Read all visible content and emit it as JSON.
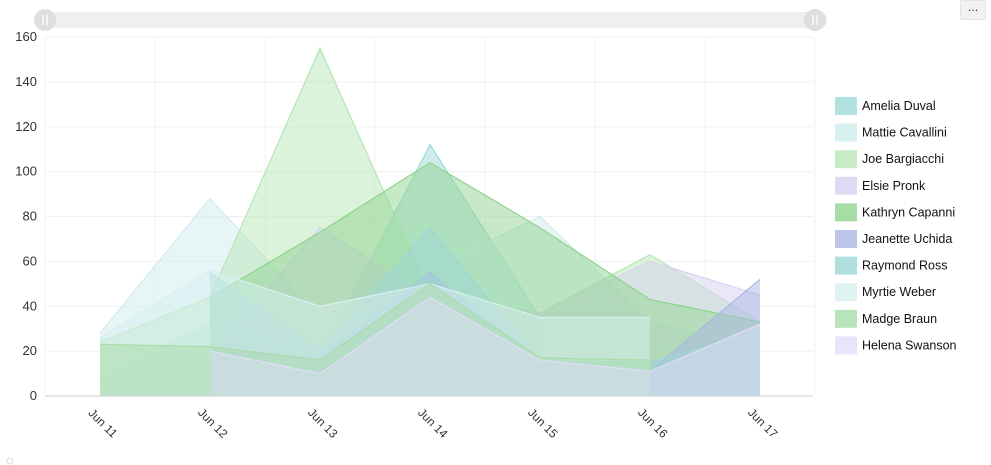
{
  "toolbar": {
    "menu_label": "..."
  },
  "chart_data": {
    "type": "area",
    "title": "",
    "xlabel": "",
    "ylabel": "",
    "categories": [
      "Jun 11",
      "Jun 12",
      "Jun 13",
      "Jun 14",
      "Jun 15",
      "Jun 16",
      "Jun 17"
    ],
    "ylim": [
      0,
      160
    ],
    "yticks": [
      0,
      20,
      40,
      60,
      80,
      100,
      120,
      140,
      160
    ],
    "grid": true,
    "legend_position": "right",
    "series": [
      {
        "name": "Amelia Duval",
        "color": "#9fd9d9",
        "values": [
          8,
          32,
          17,
          112,
          35,
          null,
          null
        ]
      },
      {
        "name": "Mattie Cavallini",
        "color": "#cfecee",
        "values": [
          28,
          88,
          35,
          56,
          80,
          33,
          20
        ]
      },
      {
        "name": "Joe Bargiacchi",
        "color": "#b8e6b8",
        "values": [
          24,
          44,
          155,
          45,
          37,
          63,
          33
        ]
      },
      {
        "name": "Elsie Pronk",
        "color": "#d5d2f0",
        "values": [
          null,
          18,
          75,
          43,
          37,
          60,
          45
        ]
      },
      {
        "name": "Kathryn Capanni",
        "color": "#8fd48f",
        "values": [
          null,
          44,
          73,
          104,
          75,
          43,
          33
        ]
      },
      {
        "name": "Jeanette Uchida",
        "color": "#a9b6e4",
        "values": [
          null,
          20,
          17,
          55,
          15,
          11,
          52
        ]
      },
      {
        "name": "Raymond Ross",
        "color": "#9ed6d6",
        "values": [
          null,
          55,
          20,
          75,
          15,
          15,
          29
        ]
      },
      {
        "name": "Myrtie Weber",
        "color": "#d7f0f0",
        "values": [
          26,
          56,
          40,
          50,
          35,
          35,
          null
        ]
      },
      {
        "name": "Madge Braun",
        "color": "#a8dca8",
        "values": [
          23,
          22,
          16,
          50,
          17,
          16,
          null
        ]
      },
      {
        "name": "Helena Swanson",
        "color": "#e0defa",
        "values": [
          null,
          20,
          10,
          44,
          16,
          11,
          32
        ]
      }
    ]
  }
}
